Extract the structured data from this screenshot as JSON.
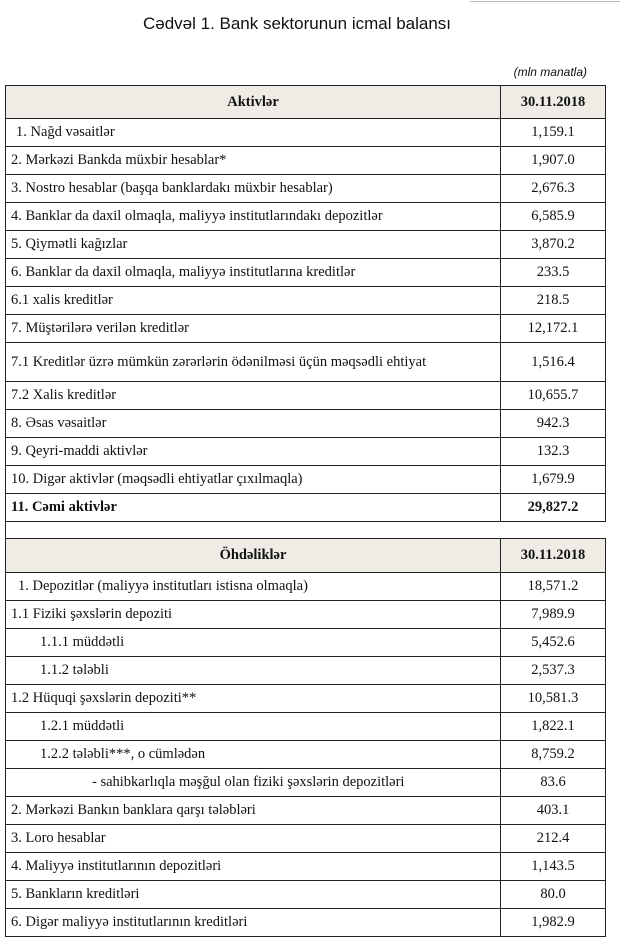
{
  "title": "Cədvəl 1. Bank sektorunun icmal balansı",
  "unit_note": "(mln manatla)",
  "assets": {
    "header": [
      "Aktivlər",
      "30.11.2018"
    ],
    "rows": [
      [
        "1. Nağd vəsaitlər",
        "1,159.1"
      ],
      [
        "2. Mərkəzi Bankda müxbir hesablar*",
        "1,907.0"
      ],
      [
        "3. Nostro hesablar (başqa banklardakı müxbir hesablar)",
        "2,676.3"
      ],
      [
        "4. Banklar da daxil olmaqla, maliyyə institutlarındakı depozitlər",
        "6,585.9"
      ],
      [
        "5. Qiymətli kağızlar",
        "3,870.2"
      ],
      [
        "6. Banklar da daxil olmaqla, maliyyə institutlarına kreditlər",
        "233.5"
      ],
      [
        "6.1  xalis kreditlər",
        "218.5"
      ],
      [
        "7. Müştərilərə verilən kreditlər",
        "12,172.1"
      ],
      [
        "7.1 Kreditlər üzrə mümkün zərərlərin ödənilməsi üçün məqsədli ehtiyat",
        "1,516.4"
      ],
      [
        "7.2 Xalis kreditlər",
        "10,655.7"
      ],
      [
        "8.  Əsas vəsaitlər",
        "942.3"
      ],
      [
        "9. Qeyri-maddi aktivlər",
        "132.3"
      ],
      [
        "10. Digər aktivlər (məqsədli ehtiyatlar çıxılmaqla)",
        "1,679.9"
      ],
      [
        "11. Cəmi aktivlər",
        "29,827.2"
      ]
    ]
  },
  "liabilities": {
    "header": [
      "Öhdəliklər",
      "30.11.2018"
    ],
    "rows": [
      [
        "1. Depozitlər (maliyyə institutları istisna olmaqla)",
        "18,571.2"
      ],
      [
        "1.1 Fiziki şəxslərin depoziti",
        "7,989.9"
      ],
      [
        "1.1.1 müddətli",
        "5,452.6"
      ],
      [
        "1.1.2 tələbli",
        "2,537.3"
      ],
      [
        "1.2 Hüquqi şəxslərin depoziti**",
        "10,581.3"
      ],
      [
        "1.2.1 müddətli",
        "1,822.1"
      ],
      [
        "1.2.2 tələbli***, o cümlədən",
        "8,759.2"
      ],
      [
        "- sahibkarlıqla məşğul olan fiziki şəxslərin depozitləri",
        "83.6"
      ],
      [
        "2. Mərkəzi Bankın banklara qarşı tələbləri",
        "403.1"
      ],
      [
        "3. Loro hesablar",
        "212.4"
      ],
      [
        "4. Maliyyə institutlarının  depozitləri",
        "1,143.5"
      ],
      [
        "5. Bankların kreditləri",
        "80.0"
      ],
      [
        "6. Digər maliyyə institutlarının kreditləri",
        "1,982.9"
      ]
    ]
  }
}
